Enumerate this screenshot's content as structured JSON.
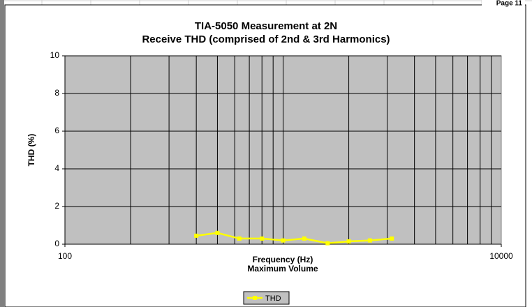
{
  "page_label": "Page 11",
  "chart_data": {
    "type": "line",
    "title": "TIA-5050 Measurement at 2N",
    "subtitle": "Receive THD  (comprised of 2nd & 3rd Harmonics)",
    "xlabel": "Frequency (Hz)",
    "xlabel_2": "Maximum Volume",
    "ylabel": "THD (%)",
    "x": [
      400,
      500,
      630,
      800,
      1000,
      1250,
      1600,
      2000,
      2500,
      3150
    ],
    "series": [
      {
        "name": "THD",
        "color": "#ffff00",
        "values": [
          0.45,
          0.6,
          0.3,
          0.3,
          0.2,
          0.3,
          0.05,
          0.15,
          0.2,
          0.3
        ]
      }
    ],
    "xlim": [
      100,
      10000
    ],
    "xticks": [
      100,
      10000
    ],
    "xgrid": [
      200,
      300,
      400,
      500,
      600,
      700,
      800,
      900,
      1000,
      2000,
      3000,
      4000,
      5000,
      6000,
      7000,
      8000,
      9000
    ],
    "xscale": "log",
    "ylim": [
      0,
      10
    ],
    "yticks": [
      0,
      2,
      4,
      6,
      8,
      10
    ],
    "grid": true,
    "plot_background": "#c0c0c0",
    "legend": "bottom"
  }
}
